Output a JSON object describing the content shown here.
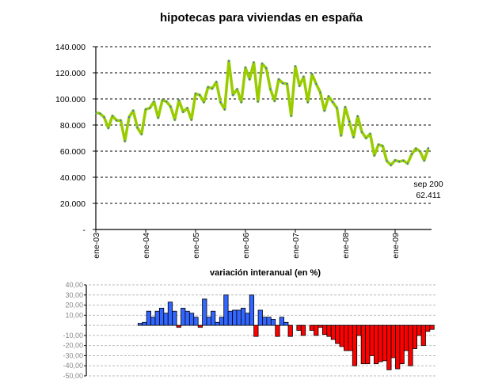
{
  "chart_data": [
    {
      "type": "line",
      "title": "hipotecas para viviendas en españa",
      "xlabel": "",
      "ylabel": "",
      "ylim": [
        0,
        140000
      ],
      "y_ticks": [
        "-",
        "20.000",
        "40.000",
        "60.000",
        "80.000",
        "100.000",
        "120.000",
        "140.000"
      ],
      "x_ticks": [
        "ene-03",
        "ene-04",
        "ene-05",
        "ene-06",
        "ene-07",
        "ene-08",
        "ene-09"
      ],
      "x_start": "ene-03",
      "x_end": "sep-09",
      "grid": "horizontal dashed",
      "line_color": "#99CC00",
      "marker_color": "#3366FF",
      "annotation": {
        "line1": "sep 200",
        "line2": "62.411"
      },
      "values": [
        89600,
        88800,
        86000,
        77700,
        87000,
        83500,
        83500,
        67700,
        86000,
        91000,
        78000,
        73000,
        92000,
        93000,
        98000,
        85600,
        99000,
        98000,
        94000,
        84000,
        99000,
        90000,
        93000,
        84000,
        104000,
        103000,
        97500,
        109000,
        108000,
        113000,
        97500,
        92000,
        129000,
        103000,
        107500,
        97500,
        124000,
        115000,
        128000,
        98000,
        127000,
        123500,
        107500,
        98400,
        115000,
        112000,
        111600,
        87000,
        125000,
        110000,
        117000,
        97500,
        119000,
        111600,
        105000,
        91000,
        102000,
        97500,
        93000,
        72000,
        93700,
        82600,
        70700,
        86700,
        74700,
        70000,
        73300,
        56700,
        65000,
        64000,
        52500,
        49300,
        53000,
        52000,
        52800,
        50500,
        57700,
        62000,
        59800,
        52800,
        62411
      ]
    },
    {
      "type": "bar",
      "title": "variación interanual (en %)",
      "ylim": [
        -50,
        40
      ],
      "y_ticks": [
        "40,00",
        "30,00",
        "20,00",
        "10,00",
        "-",
        "-10,00",
        "-20,00",
        "-30,00",
        "-40,00",
        "-50,00"
      ],
      "grid": "horizontal dashed",
      "positive_color": "#3366FF",
      "negative_color": "#FF0000",
      "values": [
        2,
        3,
        14,
        8,
        14,
        17,
        12,
        23,
        14,
        -2,
        17,
        14,
        12,
        8,
        -2,
        26,
        8,
        14,
        3,
        8,
        30,
        14,
        15,
        15,
        17,
        12,
        30,
        -11,
        15,
        8,
        8,
        6,
        -11,
        8,
        3,
        -11,
        0,
        -5,
        -10,
        0,
        -5,
        -10,
        -2,
        -9,
        -11,
        -14,
        -18,
        -21,
        -25,
        -25,
        -40,
        -10,
        -38,
        -38,
        -30,
        -38,
        -36,
        -35,
        -44,
        -32,
        -43,
        -38,
        -25,
        -40,
        -23,
        -10,
        -20,
        -6,
        -4
      ]
    }
  ]
}
